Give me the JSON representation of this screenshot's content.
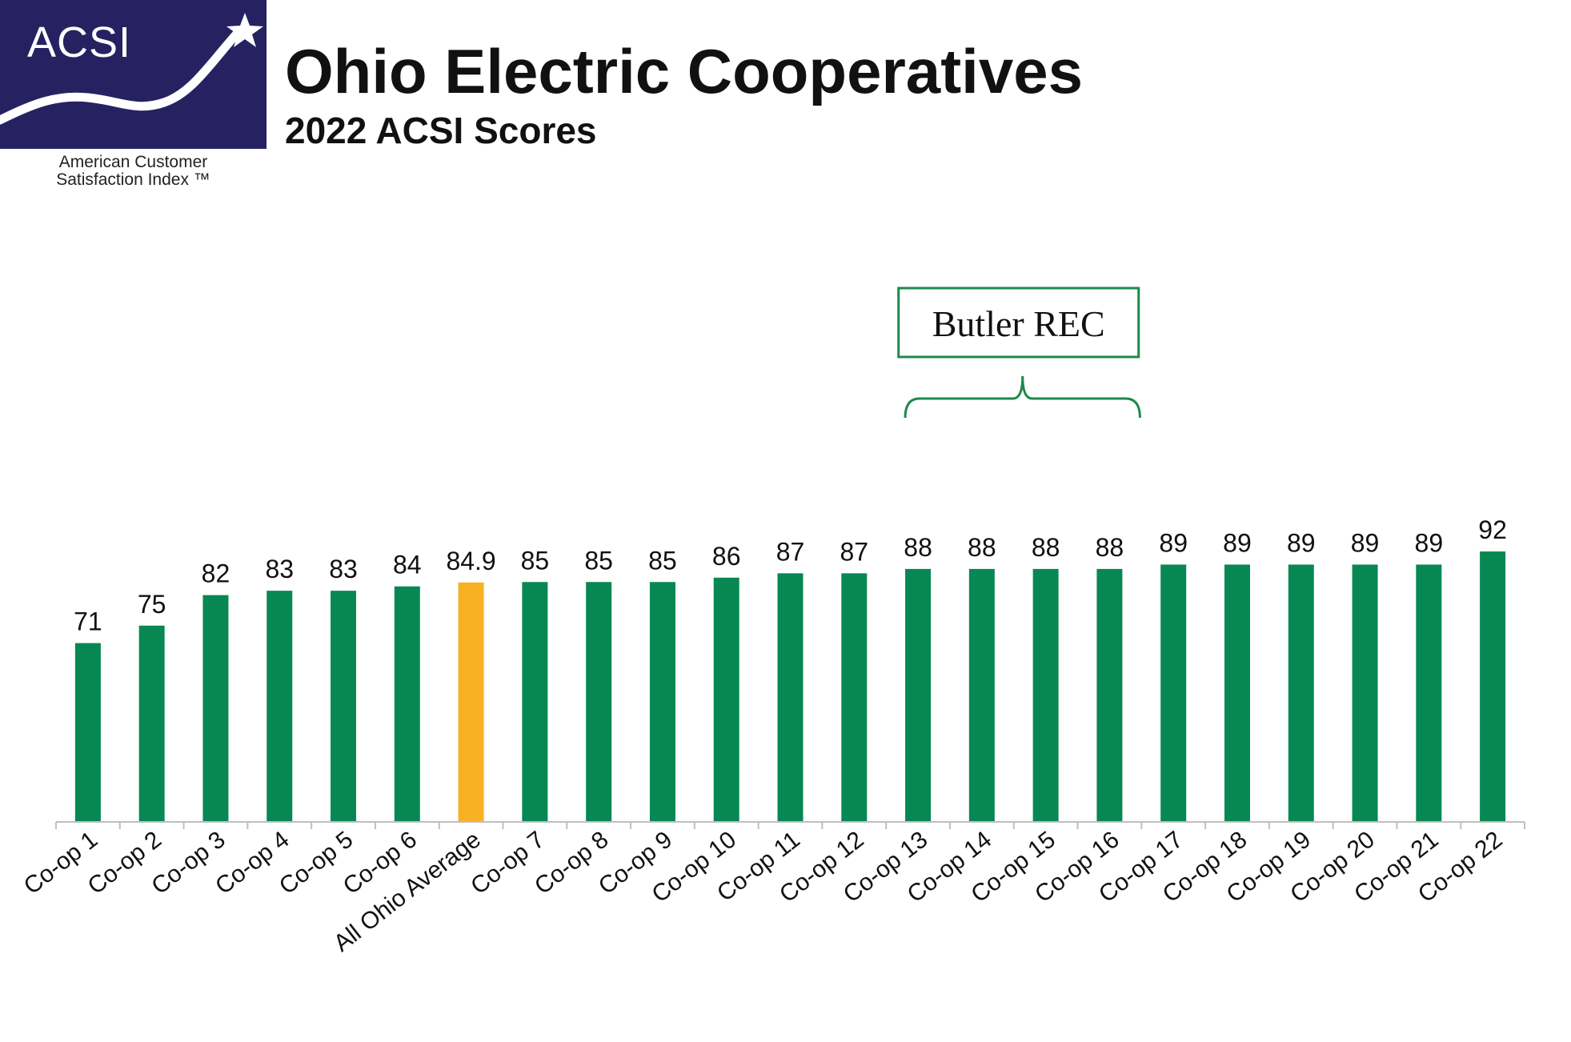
{
  "logo": {
    "mark": "ACSI",
    "caption_line1": "American Customer",
    "caption_line2": "Satisfaction Index ™",
    "bg_color": "#262262"
  },
  "header": {
    "title": "Ohio Electric Cooperatives",
    "subtitle": "2022 ACSI Scores"
  },
  "colors": {
    "bar": "#078853",
    "highlight_bar": "#F8B122",
    "callout": "#1D8A4B",
    "axis": "#bfbfbf"
  },
  "chart_data": {
    "type": "bar",
    "title": "Ohio Electric Cooperatives",
    "subtitle": "2022 ACSI Scores",
    "xlabel": "",
    "ylabel": "",
    "ylim": [
      0,
      100
    ],
    "grid": false,
    "categories": [
      "Co-op 1",
      "Co-op 2",
      "Co-op 3",
      "Co-op 4",
      "Co-op 5",
      "Co-op 6",
      "All Ohio Average",
      "Co-op 7",
      "Co-op 8",
      "Co-op 9",
      "Co-op 10",
      "Co-op 11",
      "Co-op 12",
      "Co-op 13",
      "Co-op 14",
      "Co-op 15",
      "Co-op 16",
      "Co-op 17",
      "Co-op 18",
      "Co-op 19",
      "Co-op 20",
      "Co-op 21",
      "Co-op 22"
    ],
    "values": [
      71,
      75,
      82,
      83,
      83,
      84,
      84.9,
      85,
      85,
      85,
      86,
      87,
      87,
      88,
      88,
      88,
      88,
      89,
      89,
      89,
      89,
      89,
      92
    ],
    "value_labels": [
      "71",
      "75",
      "82",
      "83",
      "83",
      "84",
      "84.9",
      "85",
      "85",
      "85",
      "86",
      "87",
      "87",
      "88",
      "88",
      "88",
      "88",
      "89",
      "89",
      "89",
      "89",
      "89",
      "92"
    ],
    "highlight_index": 6,
    "annotation": {
      "text": "Butler REC",
      "bracket_from": "Co-op 13",
      "bracket_to": "Co-op 16"
    }
  }
}
